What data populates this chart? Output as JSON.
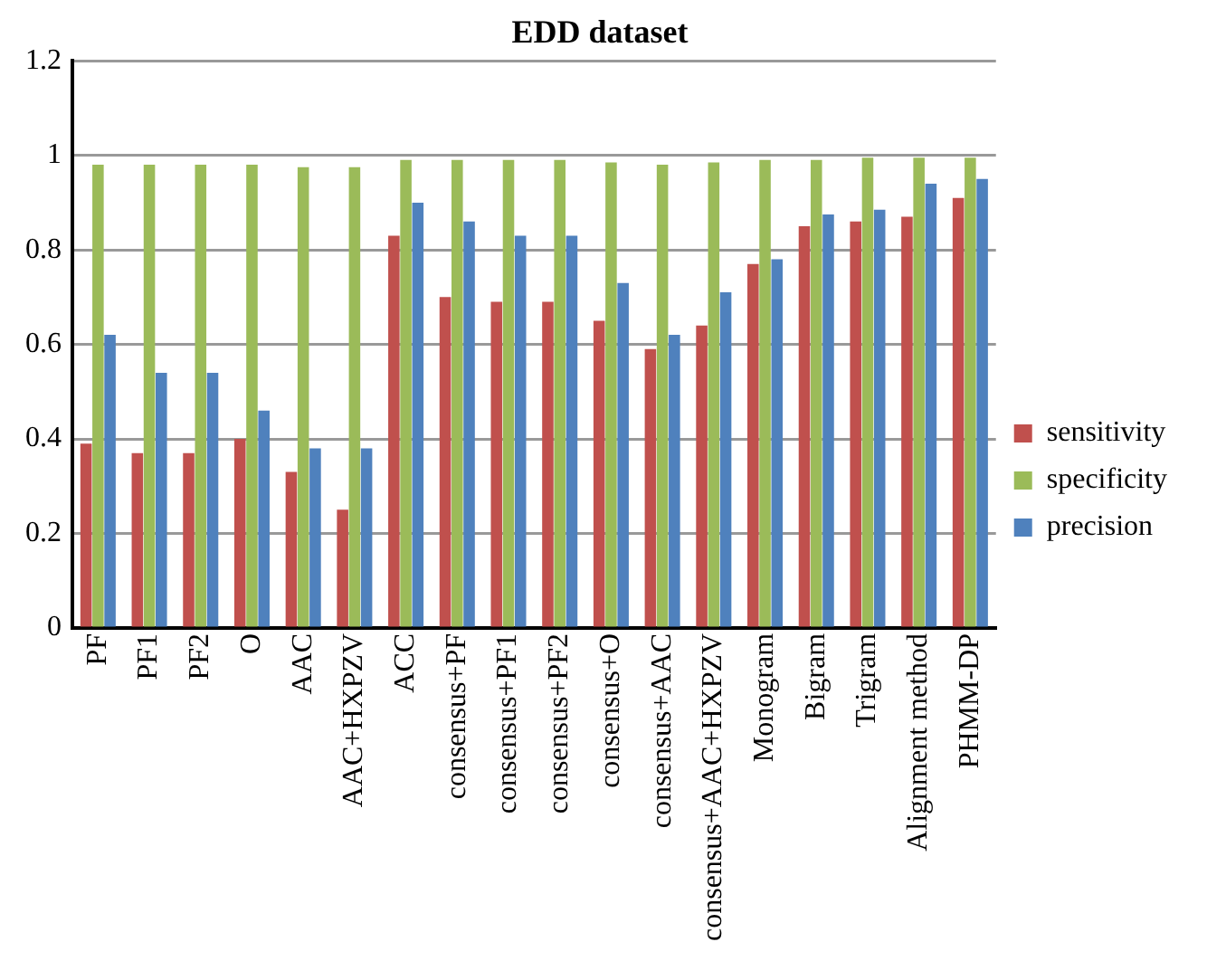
{
  "chart_data": {
    "type": "bar",
    "title": "EDD dataset",
    "categories": [
      "PF",
      "PF1",
      "PF2",
      "O",
      "AAC",
      "AAC+HXPZV",
      "ACC",
      "consensus+PF",
      "consensus+PF1",
      "consensus+PF2",
      "consensus+O",
      "consensus+AAC",
      "consensus+AAC+HXPZV",
      "Monogram",
      "Bigram",
      "Trigram",
      "Alignment method",
      "PHMM-DP"
    ],
    "series": [
      {
        "name": "sensitivity",
        "color": "#c0504d",
        "values": [
          0.39,
          0.37,
          0.37,
          0.4,
          0.33,
          0.25,
          0.83,
          0.7,
          0.69,
          0.69,
          0.65,
          0.59,
          0.64,
          0.77,
          0.85,
          0.86,
          0.87,
          0.91
        ]
      },
      {
        "name": "specificity",
        "color": "#9bbb59",
        "values": [
          0.98,
          0.98,
          0.98,
          0.98,
          0.975,
          0.975,
          0.99,
          0.99,
          0.99,
          0.99,
          0.985,
          0.98,
          0.985,
          0.99,
          0.99,
          0.995,
          0.995,
          0.995
        ]
      },
      {
        "name": "precision",
        "color": "#4f81bd",
        "values": [
          0.62,
          0.54,
          0.54,
          0.46,
          0.38,
          0.38,
          0.9,
          0.86,
          0.83,
          0.83,
          0.73,
          0.62,
          0.71,
          0.78,
          0.875,
          0.885,
          0.94,
          0.95
        ]
      }
    ],
    "ylim": [
      0,
      1.2
    ],
    "yticks": [
      0,
      {
        "value": 0.2,
        "label": "0.2"
      },
      {
        "value": 0.4,
        "label": "0.4"
      },
      {
        "value": 0.6,
        "label": "0.6"
      },
      {
        "value": 0.8,
        "label": "0.8"
      },
      1,
      {
        "value": 1.2,
        "label": "1.2"
      }
    ],
    "grid": "y",
    "legend": "right"
  }
}
